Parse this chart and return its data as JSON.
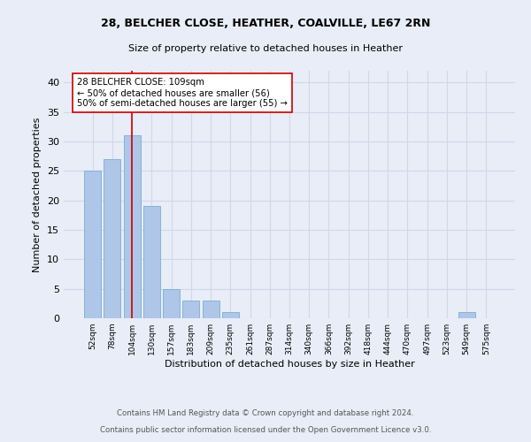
{
  "title1": "28, BELCHER CLOSE, HEATHER, COALVILLE, LE67 2RN",
  "title2": "Size of property relative to detached houses in Heather",
  "xlabel": "Distribution of detached houses by size in Heather",
  "ylabel": "Number of detached properties",
  "categories": [
    "52sqm",
    "78sqm",
    "104sqm",
    "130sqm",
    "157sqm",
    "183sqm",
    "209sqm",
    "235sqm",
    "261sqm",
    "287sqm",
    "314sqm",
    "340sqm",
    "366sqm",
    "392sqm",
    "418sqm",
    "444sqm",
    "470sqm",
    "497sqm",
    "523sqm",
    "549sqm",
    "575sqm"
  ],
  "values": [
    25,
    27,
    31,
    19,
    5,
    3,
    3,
    1,
    0,
    0,
    0,
    0,
    0,
    0,
    0,
    0,
    0,
    0,
    0,
    1,
    0
  ],
  "bar_color": "#aec6e8",
  "bar_edge_color": "#7aaed0",
  "vline_x": 2,
  "vline_color": "#cc0000",
  "annotation_text": "28 BELCHER CLOSE: 109sqm\n← 50% of detached houses are smaller (56)\n50% of semi-detached houses are larger (55) →",
  "annotation_box_color": "#ffffff",
  "annotation_box_edge_color": "#cc0000",
  "ylim": [
    0,
    42
  ],
  "yticks": [
    0,
    5,
    10,
    15,
    20,
    25,
    30,
    35,
    40
  ],
  "footer1": "Contains HM Land Registry data © Crown copyright and database right 2024.",
  "footer2": "Contains public sector information licensed under the Open Government Licence v3.0.",
  "grid_color": "#d0d8e8",
  "background_color": "#e8edf8"
}
